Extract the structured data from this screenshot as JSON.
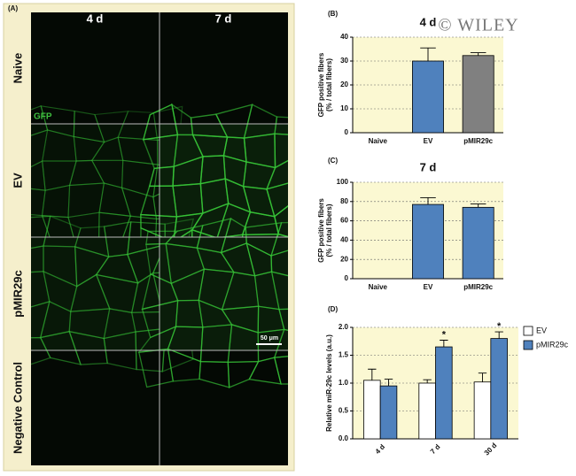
{
  "panel_a": {
    "label": "(A)",
    "columns": [
      "4 d",
      "7 d"
    ],
    "rows": [
      "Naive",
      "EV",
      "pMIR29c",
      "Negative Control"
    ],
    "stain": "GFP",
    "scale_bar": "50 μm"
  },
  "watermark": "© WILEY",
  "chart_data": [
    {
      "type": "bar",
      "panel": "(B)",
      "title": "4 d",
      "ylabel": [
        "GFP positive fibers",
        "(% / total fibers)"
      ],
      "categories": [
        "Naive",
        "EV",
        "pMIR29c"
      ],
      "values": [
        0,
        30,
        32.3
      ],
      "errors": [
        0,
        5.5,
        1.2
      ],
      "colors": [
        "#4f81bd",
        "#4f81bd",
        "#808080"
      ],
      "ylim": [
        0,
        40
      ],
      "yticks": [
        0,
        10,
        20,
        30,
        40
      ],
      "grid": true
    },
    {
      "type": "bar",
      "panel": "(C)",
      "title": "7 d",
      "ylabel": [
        "GFP positive fibers",
        "(% / total fibers)"
      ],
      "categories": [
        "Naive",
        "EV",
        "pMIR29c"
      ],
      "values": [
        0,
        77,
        74
      ],
      "errors": [
        0,
        7,
        3.5
      ],
      "colors": [
        "#4f81bd",
        "#4f81bd",
        "#4f81bd"
      ],
      "ylim": [
        0,
        100
      ],
      "yticks": [
        0,
        20,
        40,
        60,
        80,
        100
      ],
      "grid": true
    },
    {
      "type": "grouped-bar",
      "panel": "(D)",
      "ylabel": [
        "Relative miR-29c levels (a.u.)"
      ],
      "categories": [
        "4 d",
        "7 d",
        "30 d"
      ],
      "series": [
        {
          "name": "EV",
          "color": "#ffffff",
          "values": [
            1.05,
            1.0,
            1.02
          ],
          "errors": [
            0.2,
            0.06,
            0.16
          ]
        },
        {
          "name": "pMIR29c",
          "color": "#4f81bd",
          "values": [
            0.95,
            1.65,
            1.8
          ],
          "errors": [
            0.12,
            0.12,
            0.12
          ]
        }
      ],
      "annotations": [
        {
          "text": "*",
          "x": "7 d"
        },
        {
          "text": "*",
          "x": "30 d"
        }
      ],
      "ylim": [
        0,
        2
      ],
      "yticks": [
        {
          "value": 0,
          "label": "0.0"
        },
        0.5,
        {
          "value": 1,
          "label": "1.0"
        },
        1.5,
        {
          "value": 2,
          "label": "2.0"
        }
      ],
      "grid": true,
      "legend": "right"
    }
  ]
}
